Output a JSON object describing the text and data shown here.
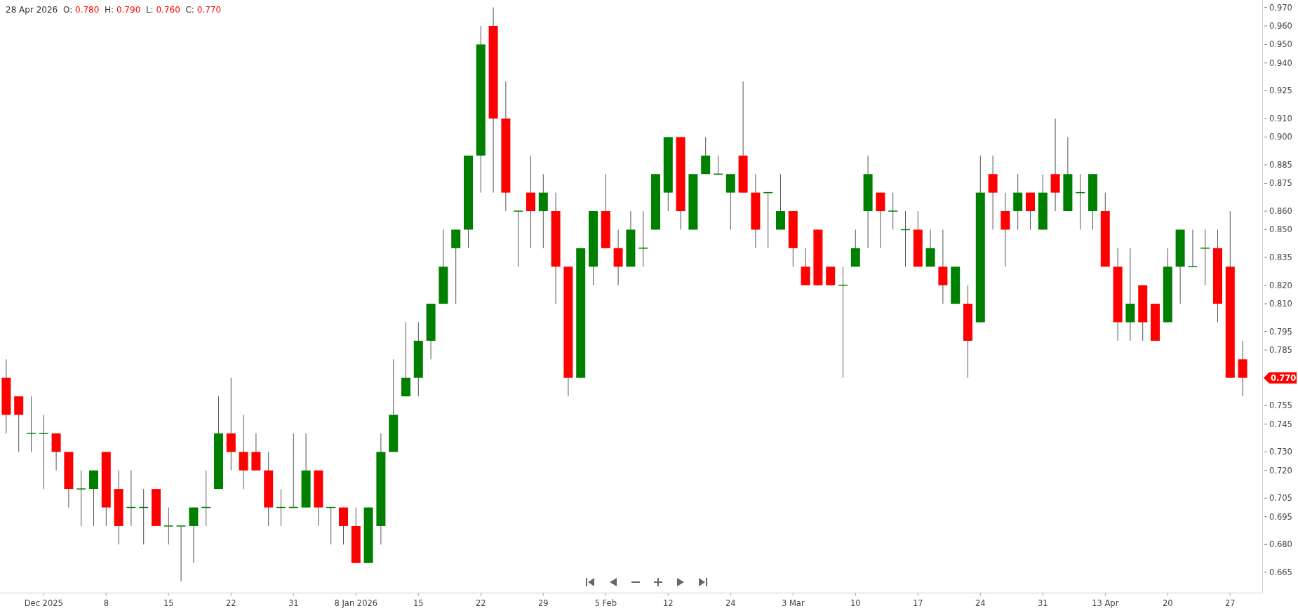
{
  "chart_data": {
    "type": "candlestick",
    "title": "28 Apr 2026  O: 0.780  H: 0.790  L: 0.760  C: 0.770",
    "categories": [
      null,
      null,
      null,
      "Dec 2025",
      null,
      null,
      null,
      null,
      "8",
      null,
      null,
      null,
      null,
      "15",
      null,
      null,
      null,
      null,
      "22",
      null,
      null,
      null,
      null,
      "31",
      null,
      null,
      null,
      null,
      "8 Jan 2026",
      null,
      null,
      null,
      null,
      "15",
      null,
      null,
      null,
      null,
      "22",
      null,
      null,
      null,
      null,
      "29",
      null,
      null,
      null,
      null,
      "5 Feb",
      null,
      null,
      null,
      null,
      "12",
      null,
      null,
      null,
      null,
      "24",
      null,
      null,
      null,
      null,
      "3 Mar",
      null,
      null,
      null,
      null,
      "10",
      null,
      null,
      null,
      null,
      "17",
      null,
      null,
      null,
      null,
      "24",
      null,
      null,
      null,
      null,
      "31",
      null,
      null,
      null,
      null,
      "13 Apr",
      null,
      null,
      null,
      null,
      "20",
      null,
      null,
      null,
      null,
      "27",
      null
    ],
    "ohlc": [
      [
        0.77,
        0.78,
        0.74,
        0.75
      ],
      [
        0.76,
        0.76,
        0.73,
        0.75
      ],
      [
        0.74,
        0.76,
        0.73,
        0.74
      ],
      [
        0.74,
        0.75,
        0.71,
        0.74
      ],
      [
        0.74,
        0.74,
        0.72,
        0.73
      ],
      [
        0.73,
        0.73,
        0.7,
        0.71
      ],
      [
        0.71,
        0.72,
        0.69,
        0.71
      ],
      [
        0.71,
        0.72,
        0.69,
        0.72
      ],
      [
        0.73,
        0.73,
        0.69,
        0.7
      ],
      [
        0.71,
        0.72,
        0.68,
        0.69
      ],
      [
        0.7,
        0.72,
        0.69,
        0.7
      ],
      [
        0.7,
        0.71,
        0.68,
        0.7
      ],
      [
        0.71,
        0.71,
        0.69,
        0.69
      ],
      [
        0.69,
        0.7,
        0.68,
        0.69
      ],
      [
        0.69,
        0.69,
        0.66,
        0.69
      ],
      [
        0.69,
        0.7,
        0.67,
        0.7
      ],
      [
        0.7,
        0.72,
        0.69,
        0.7
      ],
      [
        0.71,
        0.76,
        0.71,
        0.74
      ],
      [
        0.74,
        0.77,
        0.72,
        0.73
      ],
      [
        0.73,
        0.75,
        0.71,
        0.72
      ],
      [
        0.73,
        0.74,
        0.72,
        0.72
      ],
      [
        0.72,
        0.73,
        0.69,
        0.7
      ],
      [
        0.7,
        0.71,
        0.69,
        0.7
      ],
      [
        0.7,
        0.74,
        0.7,
        0.7
      ],
      [
        0.7,
        0.74,
        0.7,
        0.72
      ],
      [
        0.72,
        0.72,
        0.69,
        0.7
      ],
      [
        0.7,
        0.7,
        0.68,
        0.7
      ],
      [
        0.7,
        0.7,
        0.68,
        0.69
      ],
      [
        0.69,
        0.7,
        0.67,
        0.67
      ],
      [
        0.67,
        0.7,
        0.67,
        0.7
      ],
      [
        0.69,
        0.74,
        0.68,
        0.73
      ],
      [
        0.73,
        0.78,
        0.73,
        0.75
      ],
      [
        0.76,
        0.8,
        0.76,
        0.77
      ],
      [
        0.77,
        0.8,
        0.76,
        0.79
      ],
      [
        0.79,
        0.81,
        0.78,
        0.81
      ],
      [
        0.81,
        0.85,
        0.81,
        0.83
      ],
      [
        0.84,
        0.85,
        0.81,
        0.85
      ],
      [
        0.85,
        0.89,
        0.84,
        0.89
      ],
      [
        0.89,
        0.96,
        0.87,
        0.95
      ],
      [
        0.96,
        0.97,
        0.87,
        0.91
      ],
      [
        0.91,
        0.93,
        0.86,
        0.87
      ],
      [
        0.86,
        0.86,
        0.83,
        0.86
      ],
      [
        0.87,
        0.89,
        0.84,
        0.86
      ],
      [
        0.86,
        0.88,
        0.84,
        0.87
      ],
      [
        0.86,
        0.87,
        0.81,
        0.83
      ],
      [
        0.83,
        0.83,
        0.76,
        0.77
      ],
      [
        0.77,
        0.84,
        0.77,
        0.84
      ],
      [
        0.83,
        0.86,
        0.82,
        0.86
      ],
      [
        0.86,
        0.88,
        0.84,
        0.84
      ],
      [
        0.84,
        0.85,
        0.82,
        0.83
      ],
      [
        0.83,
        0.86,
        0.83,
        0.85
      ],
      [
        0.84,
        0.86,
        0.83,
        0.84
      ],
      [
        0.85,
        0.88,
        0.85,
        0.88
      ],
      [
        0.87,
        0.9,
        0.86,
        0.9
      ],
      [
        0.9,
        0.9,
        0.85,
        0.86
      ],
      [
        0.85,
        0.88,
        0.85,
        0.88
      ],
      [
        0.88,
        0.9,
        0.88,
        0.89
      ],
      [
        0.88,
        0.89,
        0.88,
        0.88
      ],
      [
        0.87,
        0.88,
        0.85,
        0.88
      ],
      [
        0.89,
        0.93,
        0.87,
        0.87
      ],
      [
        0.87,
        0.88,
        0.84,
        0.85
      ],
      [
        0.87,
        0.87,
        0.84,
        0.87
      ],
      [
        0.85,
        0.88,
        0.85,
        0.86
      ],
      [
        0.86,
        0.86,
        0.83,
        0.84
      ],
      [
        0.83,
        0.84,
        0.82,
        0.82
      ],
      [
        0.85,
        0.85,
        0.82,
        0.82
      ],
      [
        0.83,
        0.83,
        0.82,
        0.82
      ],
      [
        0.82,
        0.83,
        0.77,
        0.82
      ],
      [
        0.83,
        0.85,
        0.83,
        0.84
      ],
      [
        0.86,
        0.89,
        0.84,
        0.88
      ],
      [
        0.87,
        0.87,
        0.84,
        0.86
      ],
      [
        0.86,
        0.87,
        0.85,
        0.86
      ],
      [
        0.85,
        0.86,
        0.83,
        0.85
      ],
      [
        0.85,
        0.86,
        0.83,
        0.83
      ],
      [
        0.83,
        0.85,
        0.83,
        0.84
      ],
      [
        0.83,
        0.85,
        0.81,
        0.82
      ],
      [
        0.81,
        0.83,
        0.81,
        0.83
      ],
      [
        0.81,
        0.82,
        0.77,
        0.79
      ],
      [
        0.8,
        0.89,
        0.8,
        0.87
      ],
      [
        0.88,
        0.89,
        0.85,
        0.87
      ],
      [
        0.86,
        0.87,
        0.83,
        0.85
      ],
      [
        0.86,
        0.88,
        0.85,
        0.87
      ],
      [
        0.87,
        0.87,
        0.85,
        0.86
      ],
      [
        0.85,
        0.88,
        0.85,
        0.87
      ],
      [
        0.88,
        0.91,
        0.86,
        0.87
      ],
      [
        0.86,
        0.9,
        0.86,
        0.88
      ],
      [
        0.87,
        0.88,
        0.85,
        0.87
      ],
      [
        0.86,
        0.88,
        0.85,
        0.88
      ],
      [
        0.86,
        0.87,
        0.83,
        0.83
      ],
      [
        0.83,
        0.84,
        0.79,
        0.8
      ],
      [
        0.8,
        0.84,
        0.79,
        0.81
      ],
      [
        0.82,
        0.82,
        0.79,
        0.8
      ],
      [
        0.81,
        0.81,
        0.79,
        0.79
      ],
      [
        0.8,
        0.84,
        0.8,
        0.83
      ],
      [
        0.83,
        0.85,
        0.81,
        0.85
      ],
      [
        0.83,
        0.85,
        0.83,
        0.83
      ],
      [
        0.84,
        0.85,
        0.82,
        0.84
      ],
      [
        0.84,
        0.85,
        0.8,
        0.81
      ],
      [
        0.83,
        0.86,
        0.77,
        0.77
      ],
      [
        0.78,
        0.79,
        0.76,
        0.77
      ]
    ],
    "colors": [
      "#ff0000",
      "#ff0000",
      "#008000",
      "#008000",
      "#ff0000",
      "#ff0000",
      "#008000",
      "#008000",
      "#ff0000",
      "#ff0000",
      "#008000",
      "#008000",
      "#ff0000",
      "#008000",
      "#008000",
      "#008000",
      "#008000",
      "#008000",
      "#ff0000",
      "#ff0000",
      "#ff0000",
      "#ff0000",
      "#008000",
      "#008000",
      "#008000",
      "#ff0000",
      "#008000",
      "#ff0000",
      "#ff0000",
      "#008000",
      "#008000",
      "#008000",
      "#008000",
      "#008000",
      "#008000",
      "#008000",
      "#008000",
      "#008000",
      "#008000",
      "#ff0000",
      "#ff0000",
      "#008000",
      "#ff0000",
      "#008000",
      "#ff0000",
      "#ff0000",
      "#008000",
      "#008000",
      "#ff0000",
      "#ff0000",
      "#008000",
      "#008000",
      "#008000",
      "#008000",
      "#ff0000",
      "#008000",
      "#008000",
      "#008000",
      "#008000",
      "#ff0000",
      "#ff0000",
      "#008000",
      "#008000",
      "#ff0000",
      "#ff0000",
      "#ff0000",
      "#ff0000",
      "#008000",
      "#008000",
      "#008000",
      "#ff0000",
      "#008000",
      "#008000",
      "#ff0000",
      "#008000",
      "#ff0000",
      "#008000",
      "#ff0000",
      "#008000",
      "#ff0000",
      "#ff0000",
      "#008000",
      "#ff0000",
      "#008000",
      "#ff0000",
      "#008000",
      "#008000",
      "#008000",
      "#ff0000",
      "#ff0000",
      "#008000",
      "#ff0000",
      "#ff0000",
      "#008000",
      "#008000",
      "#008000",
      "#008000",
      "#ff0000",
      "#ff0000",
      "#ff0000"
    ],
    "ylim": [
      0.654,
      0.974
    ],
    "yticks": [
      {
        "value": 0.97,
        "label": "0.970"
      },
      {
        "value": 0.96,
        "label": "0.960"
      },
      {
        "value": 0.95,
        "label": "0.950"
      },
      {
        "value": 0.94,
        "label": "0.940"
      },
      {
        "value": 0.925,
        "label": "0.925"
      },
      {
        "value": 0.91,
        "label": "0.910"
      },
      {
        "value": 0.9,
        "label": "0.900"
      },
      {
        "value": 0.885,
        "label": "0.885"
      },
      {
        "value": 0.875,
        "label": "0.875"
      },
      {
        "value": 0.86,
        "label": "0.860"
      },
      {
        "value": 0.85,
        "label": "0.850"
      },
      {
        "value": 0.835,
        "label": "0.835"
      },
      {
        "value": 0.82,
        "label": "0.820"
      },
      {
        "value": 0.81,
        "label": "0.810"
      },
      {
        "value": 0.795,
        "label": "0.795"
      },
      {
        "value": 0.785,
        "label": "0.785"
      },
      {
        "value": 0.755,
        "label": "0.755"
      },
      {
        "value": 0.745,
        "label": "0.745"
      },
      {
        "value": 0.73,
        "label": "0.730"
      },
      {
        "value": 0.72,
        "label": "0.720"
      },
      {
        "value": 0.705,
        "label": "0.705"
      },
      {
        "value": 0.695,
        "label": "0.695"
      },
      {
        "value": 0.68,
        "label": "0.680"
      },
      {
        "value": 0.665,
        "label": "0.665"
      }
    ],
    "annotations": [
      "0.770"
    ]
  }
}
